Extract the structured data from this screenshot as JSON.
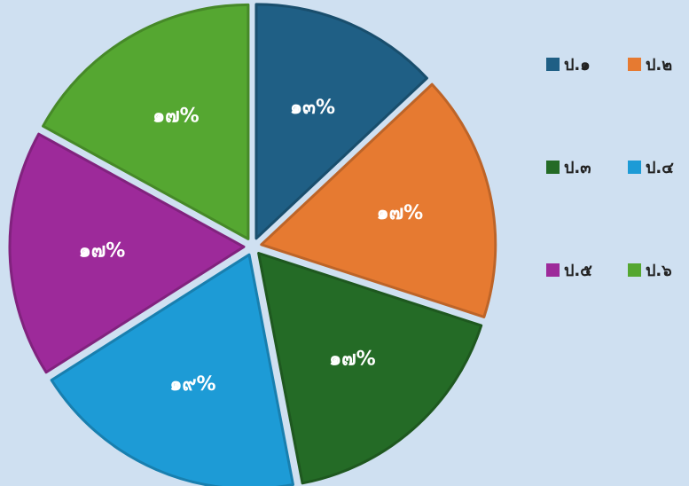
{
  "chart_data": {
    "type": "pie",
    "title": "",
    "exploded": true,
    "start_angle_deg": 0,
    "direction": "clockwise",
    "legend_position": "right",
    "slices": [
      {
        "name": "ป.๑",
        "value": 13,
        "label": "๑๓%",
        "color": "#1f5f85"
      },
      {
        "name": "ป.๒",
        "value": 17,
        "label": "๑๗%",
        "color": "#e67a31"
      },
      {
        "name": "ป.๓",
        "value": 17,
        "label": "๑๗%",
        "color": "#246b26"
      },
      {
        "name": "ป.๔",
        "value": 19,
        "label": "๑๙%",
        "color": "#1d9bd6"
      },
      {
        "name": "ป.๕",
        "value": 17,
        "label": "๑๗%",
        "color": "#9d2a9a"
      },
      {
        "name": "ป.๖",
        "value": 17,
        "label": "๑๗%",
        "color": "#55a731"
      }
    ]
  }
}
